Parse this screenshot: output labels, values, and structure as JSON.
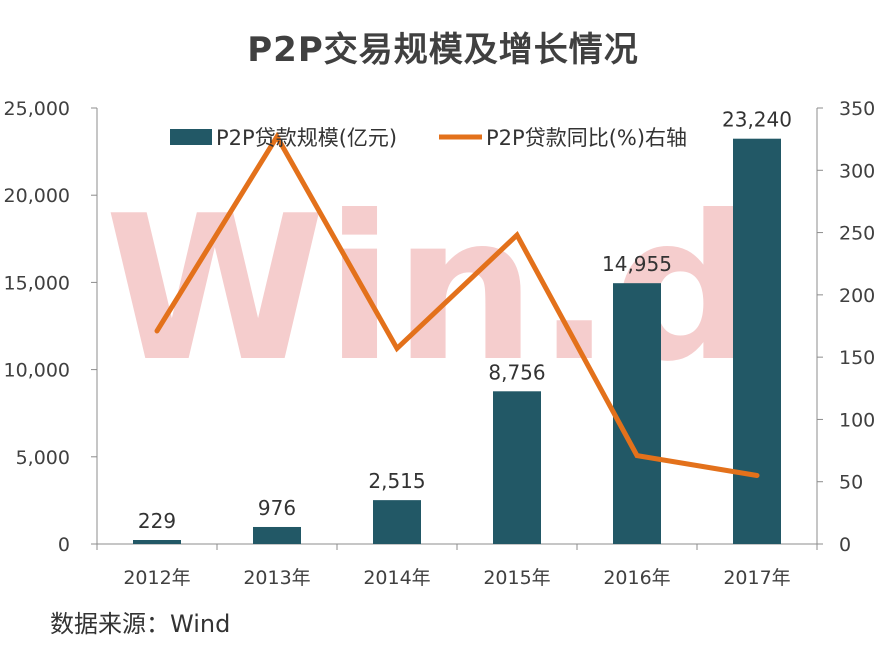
{
  "chart_data": {
    "type": "bar",
    "title": "P2P交易规模及增长情况",
    "categories": [
      "2012年",
      "2013年",
      "2014年",
      "2015年",
      "2016年",
      "2017年"
    ],
    "series": [
      {
        "name": "P2P贷款规模(亿元)",
        "type": "bar",
        "axis": "left",
        "color": "#225866",
        "values": [
          229,
          976,
          2515,
          8756,
          14955,
          23240
        ],
        "labels": [
          "229",
          "976",
          "2,515",
          "8,756",
          "14,955",
          "23,240"
        ]
      },
      {
        "name": "P2P贷款同比(%)右轴",
        "type": "line",
        "axis": "right",
        "color": "#e3711b",
        "values": [
          171,
          327,
          157,
          248,
          71,
          55
        ]
      }
    ],
    "y_left": {
      "range": [
        0,
        25000
      ],
      "ticks": [
        0,
        5000,
        10000,
        15000,
        20000,
        25000
      ],
      "tick_labels": [
        "0",
        "5,000",
        "10,000",
        "15,000",
        "20,000",
        "25,000"
      ]
    },
    "y_right": {
      "range": [
        0,
        350
      ],
      "ticks": [
        0,
        50,
        100,
        150,
        200,
        250,
        300,
        350
      ],
      "tick_labels": [
        "0",
        "50",
        "100",
        "150",
        "200",
        "250",
        "300",
        "350"
      ]
    },
    "legend_position": "top",
    "grid": false
  },
  "watermark": "Win.d",
  "source": "数据来源：Wind"
}
